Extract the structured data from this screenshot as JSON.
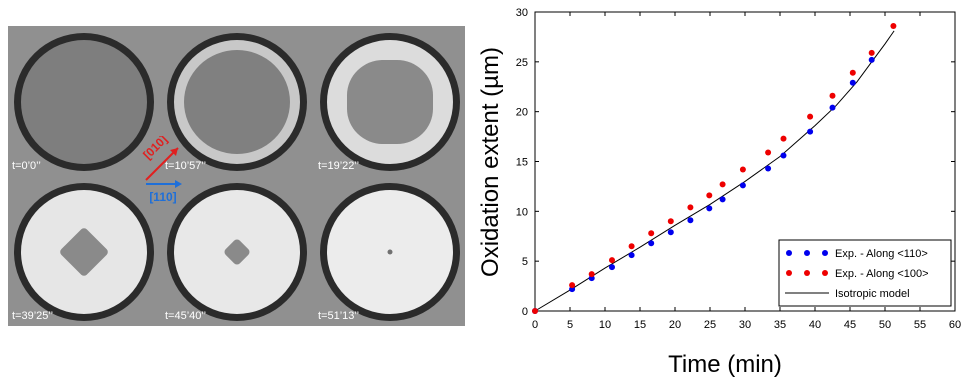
{
  "micrographs": [
    {
      "time": "t=0’0’’",
      "stage": "unoxidized"
    },
    {
      "time": "t=10’57’’",
      "stage": "thin oxide ring"
    },
    {
      "time": "t=19’22’’",
      "stage": "thick oxide ring"
    },
    {
      "time": "t=39’25’’",
      "stage": "large square core"
    },
    {
      "time": "t=45’40’’",
      "stage": "small square core"
    },
    {
      "time": "t=51’13’’",
      "stage": "core nearly consumed"
    }
  ],
  "direction_labels": {
    "red": "[010]",
    "blue": "[110]"
  },
  "colors": {
    "series_110": "#0000ee",
    "series_100": "#ee0000",
    "model": "#000000",
    "arrow_red": "#e02020",
    "arrow_blue": "#1e6fd9"
  },
  "chart_data": {
    "type": "scatter",
    "xlabel": "Time (min)",
    "ylabel": "Oxidation extent (µm)",
    "xlim": [
      0,
      60
    ],
    "ylim": [
      0,
      30
    ],
    "xticks": [
      "0",
      "5",
      "10",
      "15",
      "20",
      "25",
      "30",
      "35",
      "40",
      "45",
      "50",
      "55",
      "60"
    ],
    "yticks": [
      "0",
      "5",
      "10",
      "15",
      "20",
      "25",
      "30"
    ],
    "legend_position": "bottom-right",
    "grid": false,
    "series": [
      {
        "name": "Exp. - Along <110>",
        "kind": "points",
        "color": "#0000ee",
        "x": [
          0,
          5.3,
          8.1,
          11,
          13.8,
          16.6,
          19.4,
          22.2,
          24.9,
          26.8,
          29.7,
          33.3,
          35.5,
          39.3,
          42.5,
          45.4,
          48.1
        ],
        "y": [
          0,
          2.2,
          3.3,
          4.4,
          5.6,
          6.8,
          7.9,
          9.1,
          10.3,
          11.2,
          12.6,
          14.3,
          15.6,
          18.0,
          20.4,
          22.9,
          25.2
        ]
      },
      {
        "name": "Exp. - Along <100>",
        "kind": "points",
        "color": "#ee0000",
        "x": [
          0,
          5.3,
          8.1,
          11,
          13.8,
          16.6,
          19.4,
          22.2,
          24.9,
          26.8,
          29.7,
          33.3,
          35.5,
          39.3,
          42.5,
          45.4,
          48.1,
          51.2
        ],
        "y": [
          0,
          2.6,
          3.7,
          5.1,
          6.5,
          7.8,
          9.0,
          10.4,
          11.6,
          12.7,
          14.2,
          15.9,
          17.3,
          19.5,
          21.6,
          23.9,
          25.9,
          28.6
        ]
      },
      {
        "name": "Isotropic model",
        "kind": "line",
        "color": "#000000",
        "x": [
          0,
          5,
          10,
          15,
          20,
          25,
          30,
          35,
          40,
          43,
          46,
          48,
          50,
          51.3
        ],
        "y": [
          0,
          2.1,
          4.3,
          6.4,
          8.6,
          10.7,
          13.0,
          15.5,
          18.6,
          20.6,
          23.0,
          24.9,
          26.8,
          28.1
        ]
      }
    ]
  }
}
